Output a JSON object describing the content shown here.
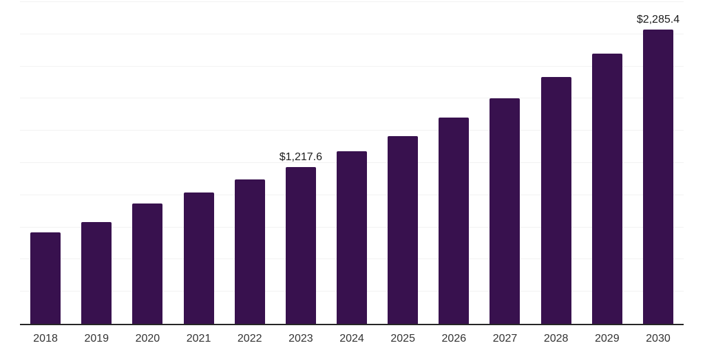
{
  "chart_data": {
    "type": "bar",
    "title": "",
    "xlabel": "",
    "ylabel": "",
    "categories": [
      "2018",
      "2019",
      "2020",
      "2021",
      "2022",
      "2023",
      "2024",
      "2025",
      "2026",
      "2027",
      "2028",
      "2029",
      "2030"
    ],
    "values": [
      712,
      789,
      937,
      1021,
      1120,
      1217.6,
      1339,
      1461,
      1603,
      1753,
      1919,
      2098,
      2285.4
    ],
    "data_labels": [
      "",
      "",
      "",
      "",
      "",
      "$1,217.6",
      "",
      "",
      "",
      "",
      "",
      "",
      "$2,285.4"
    ],
    "ylim": [
      0,
      2500
    ],
    "gridline_step": 250,
    "grid": "horizontal-only",
    "legend": "none",
    "y_axis_tick_labels": "none",
    "bar_color": "#38114E",
    "gridline_color": "#f2f2f2",
    "axis_line_color": "#262626",
    "tick_label_color": "#333333",
    "data_label_color": "#1a1a1a"
  }
}
